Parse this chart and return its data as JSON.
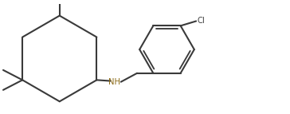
{
  "bg_color": "#ffffff",
  "line_color": "#3a3a3a",
  "nh_color": "#8B6914",
  "line_width": 1.5,
  "figsize": [
    3.64,
    1.43
  ],
  "dpi": 100
}
